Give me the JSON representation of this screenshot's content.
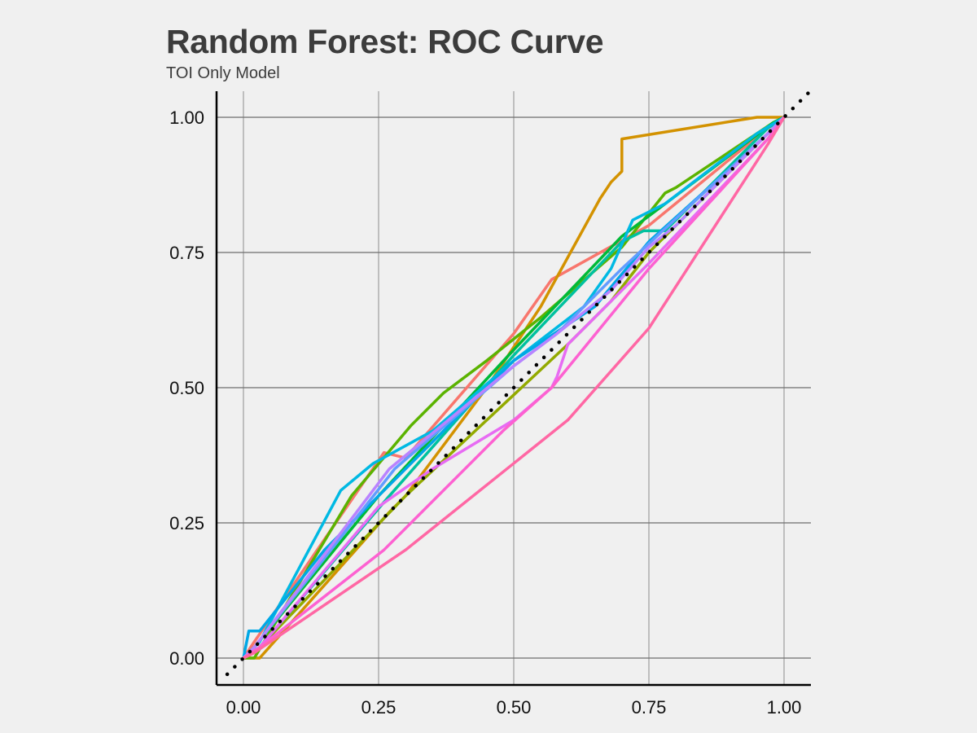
{
  "chart_data": {
    "type": "line",
    "title": "Random Forest: ROC Curve",
    "subtitle": "TOI Only Model",
    "xlabel": "",
    "ylabel": "",
    "xlim": [
      -0.05,
      1.05
    ],
    "ylim": [
      -0.05,
      1.05
    ],
    "x_ticks": [
      0,
      0.25,
      0.5,
      0.75,
      1
    ],
    "x_tick_labels": [
      "0.00",
      "0.25",
      "0.50",
      "0.75",
      "1.00"
    ],
    "y_ticks": [
      0,
      0.25,
      0.5,
      0.75,
      1
    ],
    "y_tick_labels": [
      "0.00",
      "0.25",
      "0.50",
      "0.75",
      "1.00"
    ],
    "grid": true,
    "legend": "none",
    "reference_line": {
      "x": [
        -0.03,
        1.05
      ],
      "y": [
        -0.03,
        1.05
      ],
      "style": "dotted",
      "color": "#000000"
    },
    "series": [
      {
        "color": "#f8766d",
        "x": [
          0,
          0.02,
          0.26,
          0.3,
          0.5,
          0.57,
          0.75,
          0.97,
          1
        ],
        "y": [
          0,
          0.03,
          0.38,
          0.37,
          0.6,
          0.7,
          0.8,
          0.98,
          1
        ]
      },
      {
        "color": "#d39200",
        "x": [
          0,
          0.03,
          0.27,
          0.3,
          0.45,
          0.55,
          0.66,
          0.68,
          0.7,
          0.7,
          0.95,
          1
        ],
        "y": [
          0,
          0,
          0.27,
          0.3,
          0.5,
          0.65,
          0.85,
          0.88,
          0.9,
          0.96,
          1,
          1
        ]
      },
      {
        "color": "#93aa00",
        "x": [
          0,
          0.02,
          0.3,
          0.6,
          0.68,
          0.75,
          0.95,
          1
        ],
        "y": [
          0,
          0.01,
          0.3,
          0.58,
          0.66,
          0.75,
          0.95,
          1
        ]
      },
      {
        "color": "#5bb300",
        "x": [
          0,
          0.02,
          0.2,
          0.31,
          0.37,
          0.45,
          0.55,
          0.7,
          0.78,
          0.8,
          0.98,
          1
        ],
        "y": [
          0,
          0,
          0.3,
          0.43,
          0.49,
          0.55,
          0.63,
          0.76,
          0.86,
          0.87,
          0.99,
          1
        ]
      },
      {
        "color": "#00ba38",
        "x": [
          0,
          0.02,
          0.25,
          0.5,
          0.7,
          0.98,
          1
        ],
        "y": [
          0,
          0.02,
          0.3,
          0.57,
          0.78,
          0.99,
          1
        ]
      },
      {
        "color": "#00c19f",
        "x": [
          0,
          0.03,
          0.27,
          0.5,
          0.7,
          0.74,
          0.78,
          0.97,
          1
        ],
        "y": [
          0,
          0.02,
          0.3,
          0.56,
          0.77,
          0.79,
          0.79,
          0.98,
          1
        ]
      },
      {
        "color": "#00b9e3",
        "x": [
          0,
          0.03,
          0.18,
          0.24,
          0.35,
          0.5,
          0.63,
          0.68,
          0.72,
          0.78,
          0.95,
          1
        ],
        "y": [
          0,
          0.03,
          0.31,
          0.36,
          0.42,
          0.55,
          0.65,
          0.72,
          0.81,
          0.84,
          0.97,
          1
        ]
      },
      {
        "color": "#00a8e6",
        "x": [
          0,
          0.01,
          0.03,
          0.15,
          0.5,
          0.65,
          0.75,
          0.95,
          1
        ],
        "y": [
          0,
          0.05,
          0.05,
          0.2,
          0.55,
          0.65,
          0.77,
          0.95,
          1
        ]
      },
      {
        "color": "#619cff",
        "x": [
          0,
          0.02,
          0.28,
          0.5,
          0.58,
          0.7,
          0.97,
          1
        ],
        "y": [
          0,
          0.02,
          0.35,
          0.54,
          0.6,
          0.72,
          0.97,
          1
        ]
      },
      {
        "color": "#b983ff",
        "x": [
          0,
          0.02,
          0.27,
          0.5,
          0.58,
          0.68,
          0.75,
          0.8,
          0.97,
          1
        ],
        "y": [
          0,
          0.02,
          0.35,
          0.54,
          0.6,
          0.68,
          0.76,
          0.8,
          0.97,
          1
        ]
      },
      {
        "color": "#e76bf3",
        "x": [
          0,
          0.03,
          0.25,
          0.35,
          0.5,
          0.57,
          0.58,
          0.6,
          0.75,
          0.97,
          1
        ],
        "y": [
          0,
          0.02,
          0.28,
          0.35,
          0.44,
          0.5,
          0.52,
          0.58,
          0.73,
          0.96,
          1
        ]
      },
      {
        "color": "#fd61d1",
        "x": [
          0,
          0.03,
          0.26,
          0.4,
          0.48,
          0.57,
          0.75,
          0.97,
          1
        ],
        "y": [
          0,
          0.02,
          0.2,
          0.34,
          0.42,
          0.5,
          0.72,
          0.96,
          1
        ]
      },
      {
        "color": "#ff67a4",
        "x": [
          0,
          0.02,
          0.3,
          0.6,
          0.75,
          0.97,
          1
        ],
        "y": [
          0,
          0.01,
          0.2,
          0.44,
          0.61,
          0.95,
          1
        ]
      }
    ]
  }
}
